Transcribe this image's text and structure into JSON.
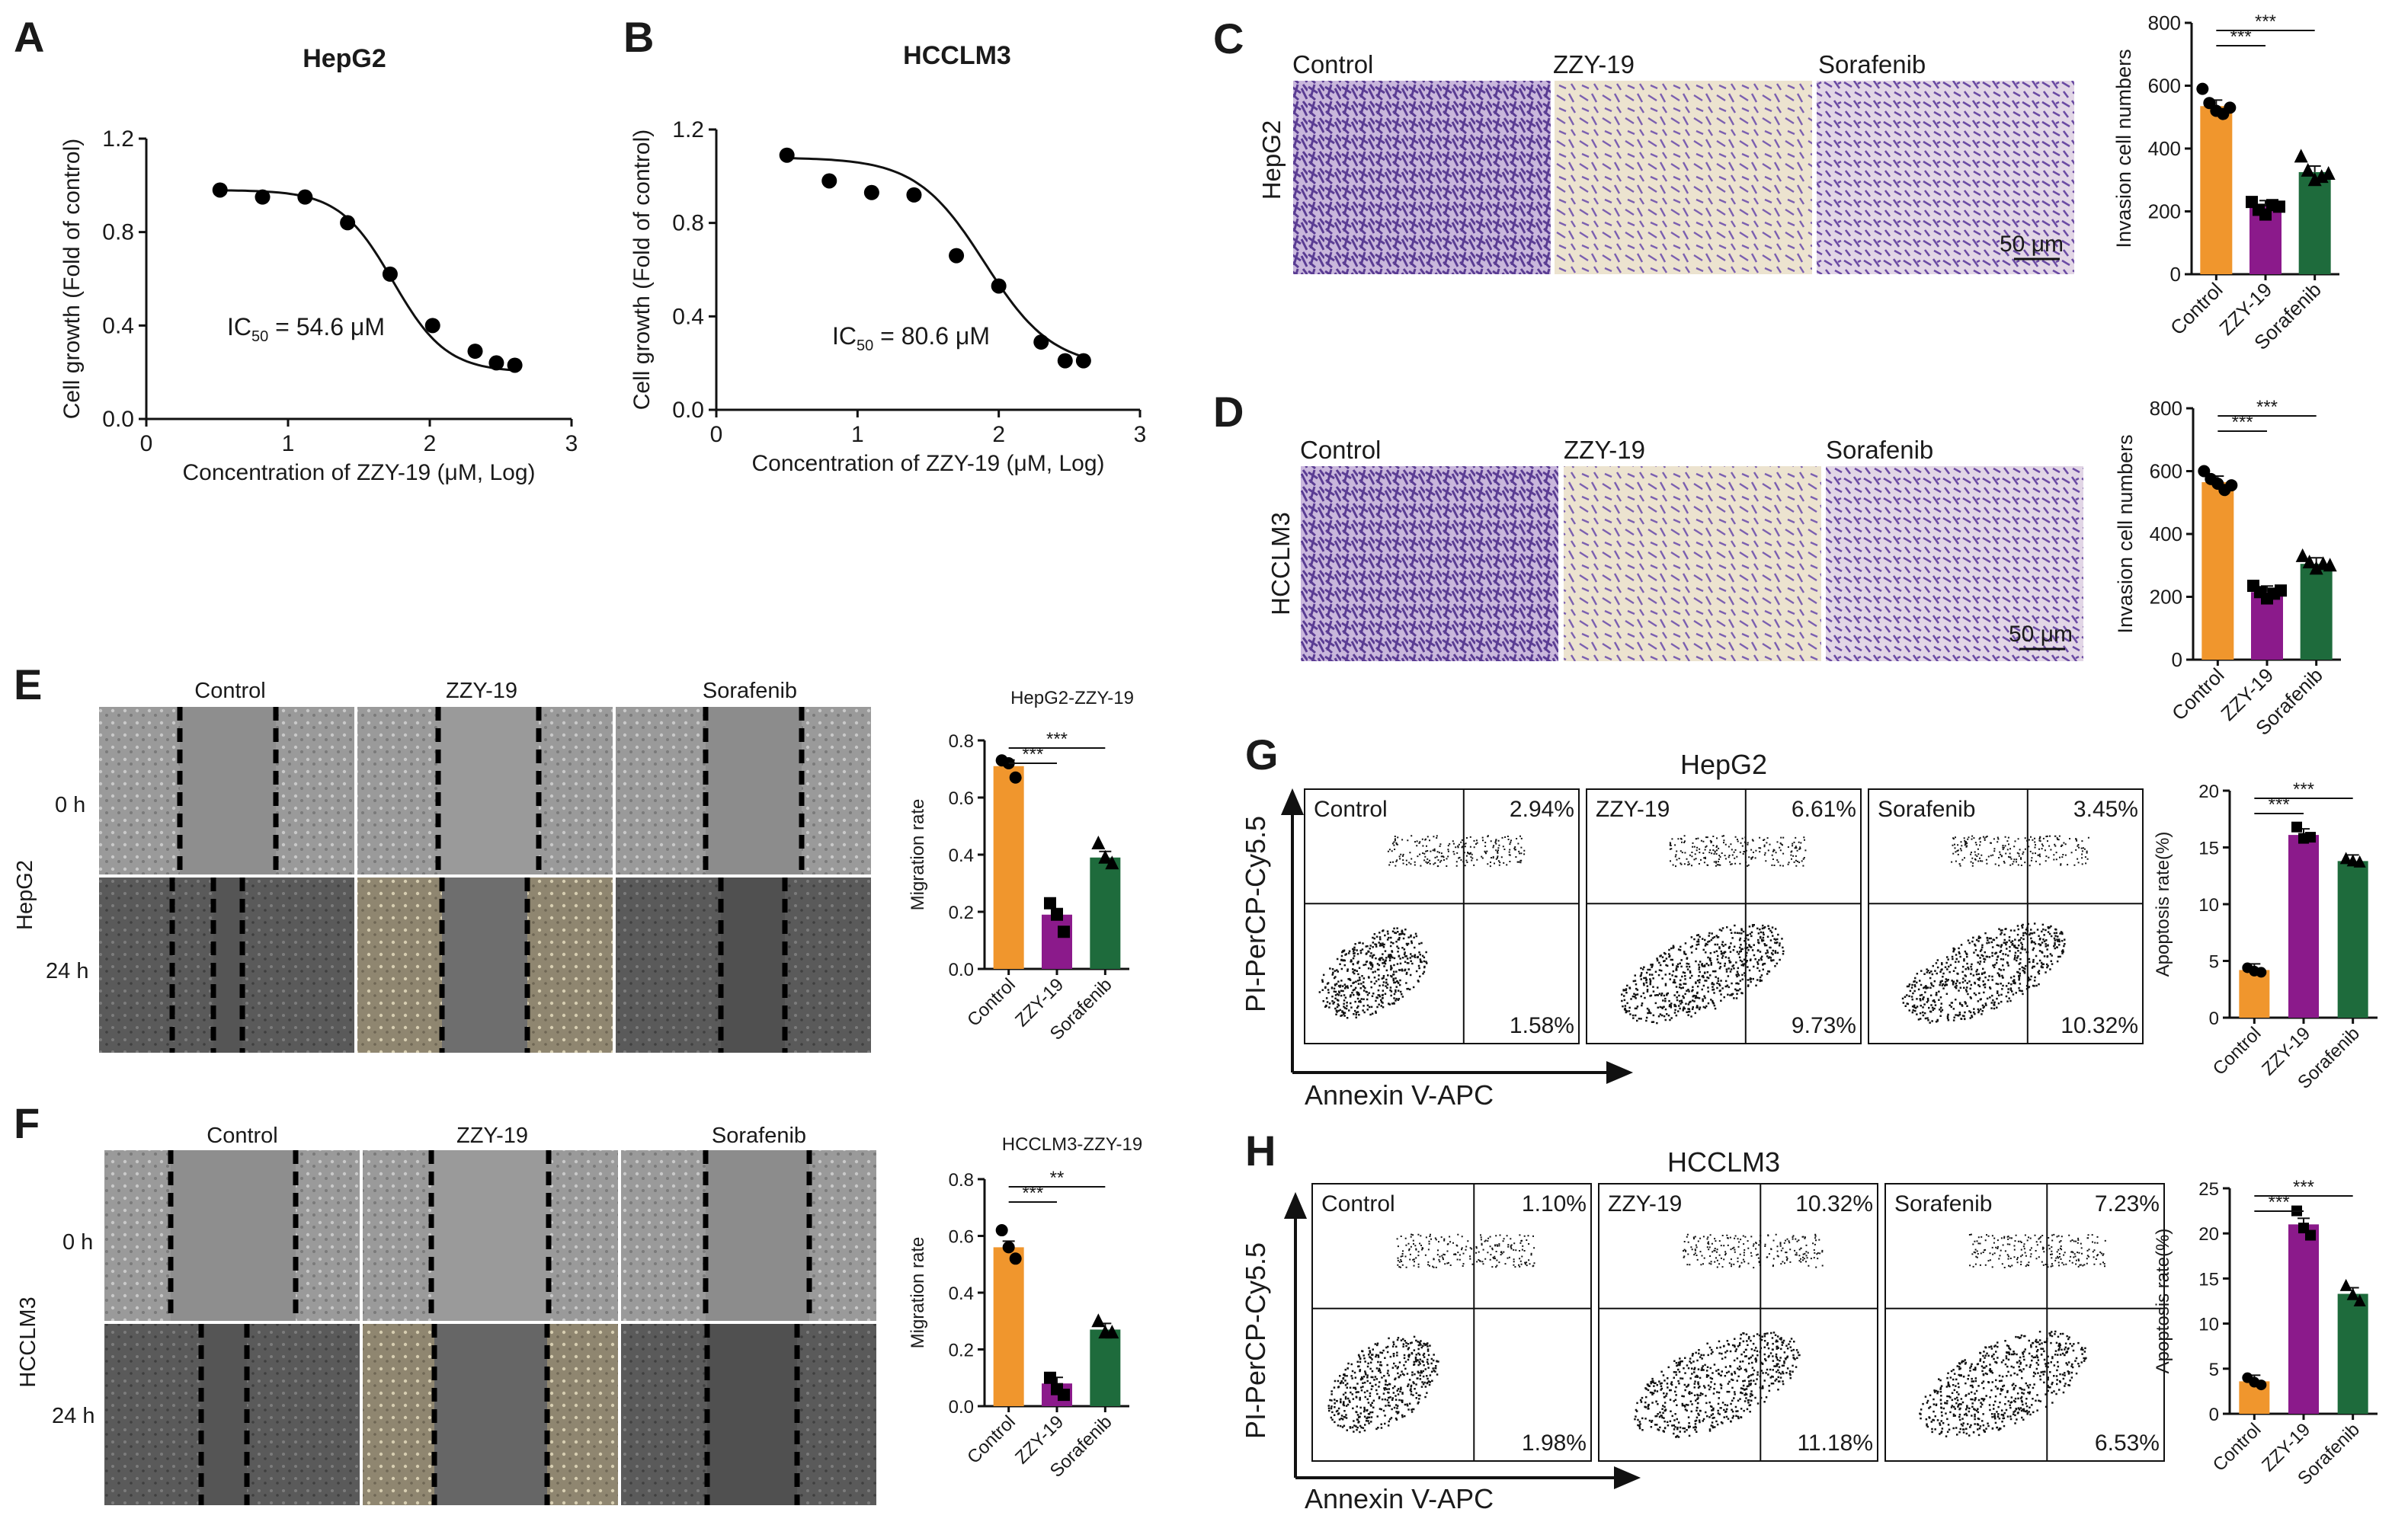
{
  "panels": {
    "A": {
      "letter": "A",
      "title": "HepG2",
      "ic50": {
        "prefix": "IC",
        "sub": "50",
        "value": " = 54.6 μM"
      }
    },
    "B": {
      "letter": "B",
      "title": "HCCLM3",
      "ic50": {
        "prefix": "IC",
        "sub": "50",
        "value": " = 80.6 μM"
      }
    },
    "C": {
      "letter": "C",
      "row_label": "HepG2",
      "scale_bar": "50 μm",
      "columns": [
        "Control",
        "ZZY-19",
        "Sorafenib"
      ]
    },
    "D": {
      "letter": "D",
      "row_label": "HCCLM3",
      "scale_bar": "50 μm",
      "columns": [
        "Control",
        "ZZY-19",
        "Sorafenib"
      ]
    },
    "E": {
      "letter": "E",
      "cell_label": "HepG2",
      "columns": [
        "Control",
        "ZZY-19",
        "Sorafenib"
      ],
      "rows": [
        "0 h",
        "24 h"
      ]
    },
    "F": {
      "letter": "F",
      "cell_label": "HCCLM3",
      "columns": [
        "Control",
        "ZZY-19",
        "Sorafenib"
      ],
      "rows": [
        "0 h",
        "24 h"
      ]
    },
    "G": {
      "letter": "G",
      "title": "HepG2",
      "y_axis": "PI-PerCP-Cy5.5",
      "x_axis": "Annexin V-APC",
      "plots": [
        {
          "name": "Control",
          "ur": "2.94%",
          "lr": "1.58%"
        },
        {
          "name": "ZZY-19",
          "ur": "6.61%",
          "lr": "9.73%"
        },
        {
          "name": "Sorafenib",
          "ur": "3.45%",
          "lr": "10.32%"
        }
      ]
    },
    "H": {
      "letter": "H",
      "title": "HCCLM3",
      "y_axis": "PI-PerCP-Cy5.5",
      "x_axis": "Annexin V-APC",
      "plots": [
        {
          "name": "Control",
          "ur": "1.10%",
          "lr": "1.98%"
        },
        {
          "name": "ZZY-19",
          "ur": "10.32%",
          "lr": "11.18%"
        },
        {
          "name": "Sorafenib",
          "ur": "7.23%",
          "lr": "6.53%"
        }
      ]
    }
  },
  "colors": {
    "control": "#f0962d",
    "zzy19": "#8b1a8b",
    "sorafenib": "#1e6b3c"
  },
  "chart_data": [
    {
      "id": "A",
      "type": "scatter",
      "title": "HepG2",
      "xlabel": "Concentration of ZZY-19 (μM, Log)",
      "ylabel": "Cell growth (Fold of control)",
      "xlim": [
        0,
        3
      ],
      "ylim": [
        0,
        1.2
      ],
      "xticks": [
        "0",
        "1",
        "2",
        "3"
      ],
      "yticks": [
        "0.0",
        "0.4",
        "0.8",
        "1.2"
      ],
      "x": [
        0.52,
        0.82,
        1.12,
        1.42,
        1.72,
        2.02,
        2.32,
        2.47,
        2.6
      ],
      "y": [
        0.98,
        0.95,
        0.95,
        0.84,
        0.62,
        0.4,
        0.29,
        0.24,
        0.23
      ],
      "fit": {
        "top": 0.98,
        "bottom": 0.2,
        "logIC50": 1.74,
        "hill": 2.3
      }
    },
    {
      "id": "B",
      "type": "scatter",
      "title": "HCCLM3",
      "xlabel": "Concentration of ZZY-19 (μM, Log)",
      "ylabel": "Cell growth (Fold of control)",
      "xlim": [
        0,
        3
      ],
      "ylim": [
        0,
        1.2
      ],
      "xticks": [
        "0",
        "1",
        "2",
        "3"
      ],
      "yticks": [
        "0.0",
        "0.4",
        "0.8",
        "1.2"
      ],
      "x": [
        0.5,
        0.8,
        1.1,
        1.4,
        1.7,
        2.0,
        2.3,
        2.47,
        2.6
      ],
      "y": [
        1.09,
        0.98,
        0.93,
        0.92,
        0.66,
        0.53,
        0.29,
        0.21,
        0.21
      ],
      "fit": {
        "top": 1.08,
        "bottom": 0.18,
        "logIC50": 1.9,
        "hill": 1.8
      }
    },
    {
      "id": "C",
      "type": "bar",
      "ylabel": "Invasion cell numbers",
      "categories": [
        "Control",
        "ZZY-19",
        "Sorafenib"
      ],
      "values": [
        535,
        215,
        325
      ],
      "points": [
        [
          590,
          545,
          520,
          510,
          530
        ],
        [
          230,
          205,
          190,
          220,
          215
        ],
        [
          375,
          330,
          300,
          310,
          320
        ]
      ],
      "ylim": [
        0,
        800
      ],
      "yticks": [
        "0",
        "200",
        "400",
        "600",
        "800"
      ],
      "significance": [
        {
          "from": 0,
          "to": 1,
          "label": "***"
        },
        {
          "from": 0,
          "to": 2,
          "label": "***"
        }
      ]
    },
    {
      "id": "D",
      "type": "bar",
      "ylabel": "Invasion cell numbers",
      "categories": [
        "Control",
        "ZZY-19",
        "Sorafenib"
      ],
      "values": [
        565,
        215,
        305
      ],
      "points": [
        [
          600,
          575,
          560,
          540,
          555
        ],
        [
          235,
          215,
          195,
          210,
          220
        ],
        [
          330,
          310,
          290,
          305,
          300
        ]
      ],
      "ylim": [
        0,
        800
      ],
      "yticks": [
        "0",
        "200",
        "400",
        "600",
        "800"
      ],
      "significance": [
        {
          "from": 0,
          "to": 1,
          "label": "***"
        },
        {
          "from": 0,
          "to": 2,
          "label": "***"
        }
      ]
    },
    {
      "id": "E",
      "type": "bar",
      "title": "HepG2-ZZY-19",
      "ylabel": "Migration rate",
      "categories": [
        "Control",
        "ZZY-19",
        "Sorafenib"
      ],
      "values": [
        0.71,
        0.19,
        0.39
      ],
      "points": [
        [
          0.73,
          0.72,
          0.67
        ],
        [
          0.23,
          0.19,
          0.13
        ],
        [
          0.44,
          0.39,
          0.37
        ]
      ],
      "ylim": [
        0,
        0.8
      ],
      "yticks": [
        "0.0",
        "0.2",
        "0.4",
        "0.6",
        "0.8"
      ],
      "significance": [
        {
          "from": 0,
          "to": 1,
          "label": "***"
        },
        {
          "from": 0,
          "to": 2,
          "label": "***"
        }
      ]
    },
    {
      "id": "F",
      "type": "bar",
      "title": "HCCLM3-ZZY-19",
      "ylabel": "Migration rate",
      "categories": [
        "Control",
        "ZZY-19",
        "Sorafenib"
      ],
      "values": [
        0.56,
        0.08,
        0.27
      ],
      "points": [
        [
          0.62,
          0.56,
          0.52
        ],
        [
          0.1,
          0.06,
          0.04
        ],
        [
          0.3,
          0.26,
          0.26
        ]
      ],
      "ylim": [
        0,
        0.8
      ],
      "yticks": [
        "0.0",
        "0.2",
        "0.4",
        "0.6",
        "0.8"
      ],
      "significance": [
        {
          "from": 0,
          "to": 1,
          "label": "***"
        },
        {
          "from": 0,
          "to": 2,
          "label": "**"
        }
      ]
    },
    {
      "id": "G",
      "type": "bar",
      "ylabel": "Apoptosis rate(%)",
      "categories": [
        "Control",
        "ZZY-19",
        "Sorafenib"
      ],
      "values": [
        4.2,
        16.1,
        13.8
      ],
      "points": [
        [
          4.4,
          4.1,
          4.0
        ],
        [
          16.8,
          15.8,
          15.9
        ],
        [
          14.0,
          13.8,
          13.7
        ]
      ],
      "ylim": [
        0,
        20
      ],
      "yticks": [
        "0",
        "5",
        "10",
        "15",
        "20"
      ],
      "significance": [
        {
          "from": 0,
          "to": 1,
          "label": "***"
        },
        {
          "from": 0,
          "to": 2,
          "label": "***"
        }
      ]
    },
    {
      "id": "H",
      "type": "bar",
      "ylabel": "Apoptosis rate(%)",
      "categories": [
        "Control",
        "ZZY-19",
        "Sorafenib"
      ],
      "values": [
        3.6,
        21.0,
        13.3
      ],
      "points": [
        [
          4.0,
          3.5,
          3.2
        ],
        [
          22.5,
          20.6,
          19.8
        ],
        [
          14.2,
          13.2,
          12.5
        ]
      ],
      "ylim": [
        0,
        25
      ],
      "yticks": [
        "0",
        "5",
        "10",
        "15",
        "20",
        "25"
      ],
      "significance": [
        {
          "from": 0,
          "to": 1,
          "label": "***"
        },
        {
          "from": 0,
          "to": 2,
          "label": "***"
        }
      ]
    }
  ]
}
